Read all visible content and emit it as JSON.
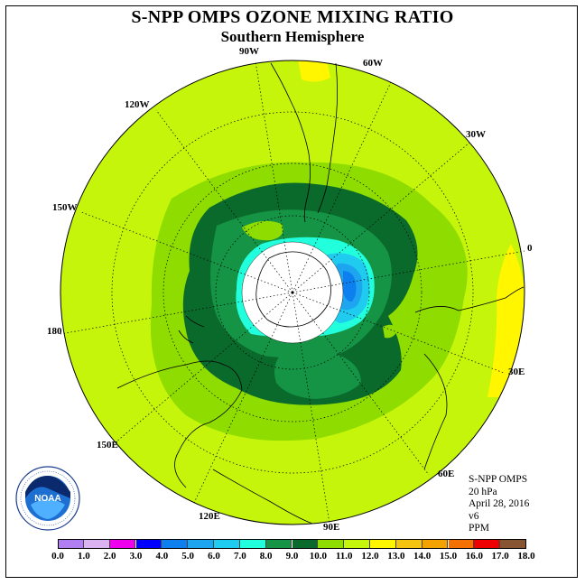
{
  "title": "S-NPP OMPS OZONE MIXING RATIO",
  "subtitle": "Southern Hemisphere",
  "logo": {
    "name": "NOAA",
    "ring_text": "NATIONAL OCEANIC AND ATMOSPHERIC ADMINISTRATION · U.S. DEPARTMENT OF COMMERCE"
  },
  "info": {
    "instrument": "S-NPP OMPS",
    "level": "20 hPa",
    "date": "April 28, 2016",
    "version": "v6",
    "units": "PPM"
  },
  "longitude_labels": [
    "0",
    "30E",
    "60E",
    "90E",
    "120E",
    "150E",
    "180",
    "150W",
    "120W",
    "90W",
    "60W",
    "30W"
  ],
  "legend": {
    "ticks": [
      "0.0",
      "1.0",
      "2.0",
      "3.0",
      "4.0",
      "5.0",
      "6.0",
      "7.0",
      "8.0",
      "9.0",
      "10.0",
      "11.0",
      "12.0",
      "13.0",
      "14.0",
      "15.0",
      "16.0",
      "17.0",
      "18.0"
    ],
    "colors": [
      "#b27ff2",
      "#dbb2f2",
      "#ee00ee",
      "#0000ff",
      "#0e7fef",
      "#1da6ef",
      "#1fcbef",
      "#22ffdd",
      "#149444",
      "#0a6a2c",
      "#8fdc00",
      "#c5f50a",
      "#fff600",
      "#f4c411",
      "#f4a200",
      "#f47000",
      "#ee0000",
      "#885533"
    ]
  }
}
